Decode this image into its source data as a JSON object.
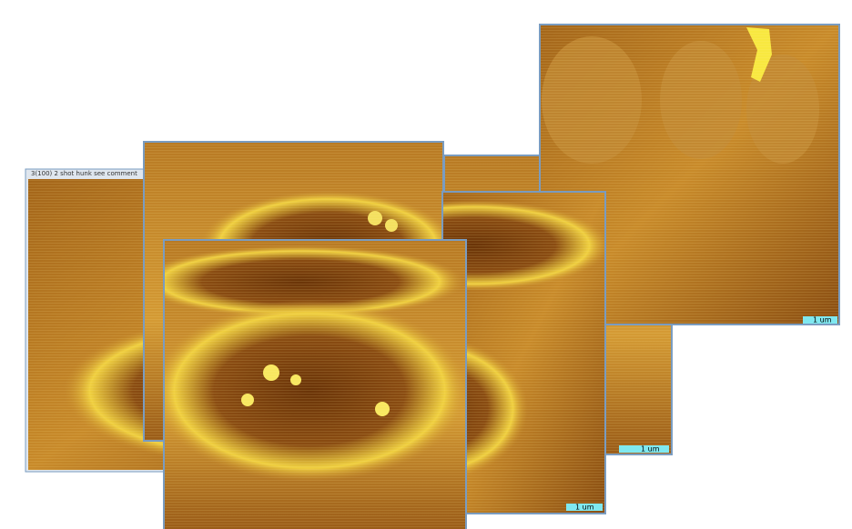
{
  "window_title": "3(100) 2 shot hunk see comment",
  "scale_labels": [
    "1 um",
    "1 um",
    "1 um"
  ]
}
